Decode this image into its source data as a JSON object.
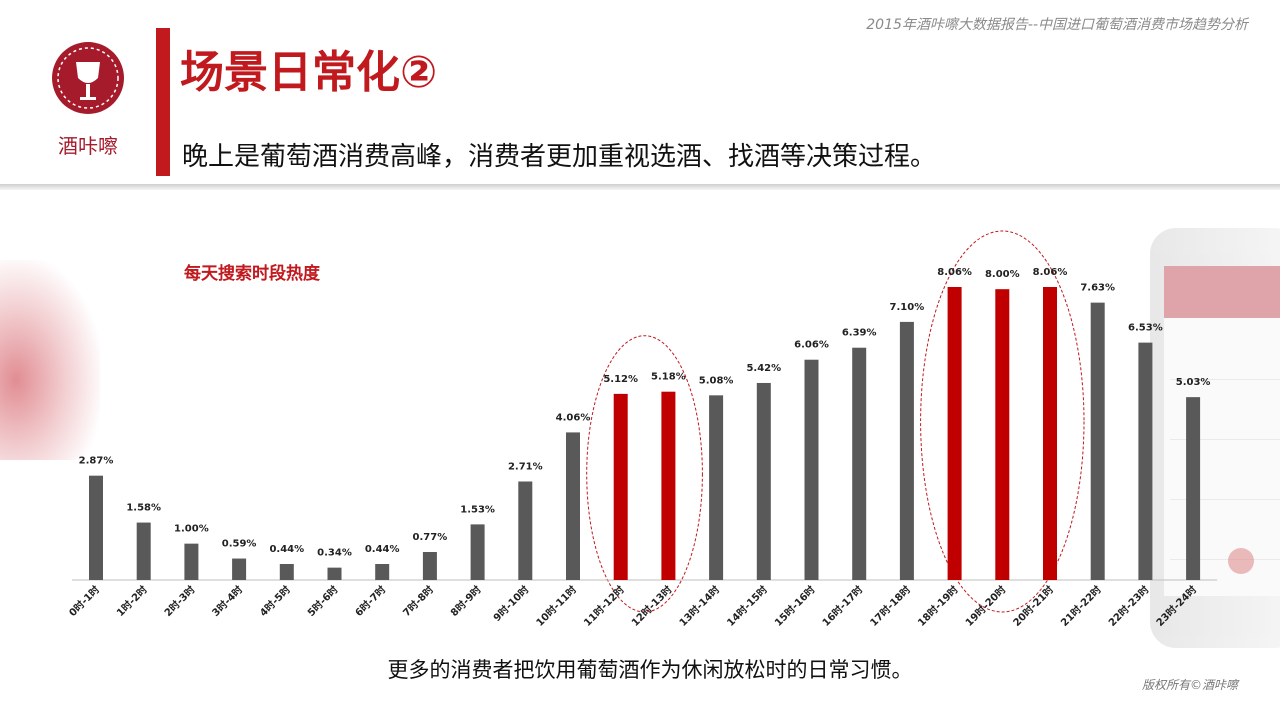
{
  "report_title": "2015年酒咔嚓大数据报告--中国进口葡萄酒消费市场趋势分析",
  "brand": {
    "name": "酒咔嚓"
  },
  "page_title": "场景日常化②",
  "subtitle": "晚上是葡萄酒消费高峰，消费者更加重视选酒、找酒等决策过程。",
  "caption": "更多的消费者把饮用葡萄酒作为休闲放松时的日常习惯。",
  "copyright": "版权所有©酒咔嚓",
  "colors": {
    "accent": "#c0191e",
    "bar_default": "#595959",
    "bar_highlight": "#c00000"
  },
  "chart_data": {
    "type": "bar",
    "title": "每天搜索时段热度",
    "categories": [
      "0时-1时",
      "1时-2时",
      "2时-3时",
      "3时-4时",
      "4时-5时",
      "5时-6时",
      "6时-7时",
      "7时-8时",
      "8时-9时",
      "9时-10时",
      "10时-11时",
      "11时-12时",
      "12时-13时",
      "13时-14时",
      "14时-15时",
      "15时-16时",
      "16时-17时",
      "17时-18时",
      "18时-19时",
      "19时-20时",
      "20时-21时",
      "21时-22时",
      "22时-23时",
      "23时-24时"
    ],
    "values": [
      2.87,
      1.58,
      1.0,
      0.59,
      0.44,
      0.34,
      0.44,
      0.77,
      1.53,
      2.71,
      4.06,
      5.12,
      5.18,
      5.08,
      5.42,
      6.06,
      6.39,
      7.1,
      8.06,
      8.0,
      8.06,
      7.63,
      6.53,
      5.03
    ],
    "value_labels": [
      "2.87%",
      "1.58%",
      "1.00%",
      "0.59%",
      "0.44%",
      "0.34%",
      "0.44%",
      "0.77%",
      "1.53%",
      "2.71%",
      "4.06%",
      "5.12%",
      "5.18%",
      "5.08%",
      "5.42%",
      "6.06%",
      "6.39%",
      "7.10%",
      "8.06%",
      "8.00%",
      "8.06%",
      "7.63%",
      "6.53%",
      "5.03%"
    ],
    "highlighted": [
      11,
      12,
      18,
      19,
      20
    ],
    "highlight_groups": [
      [
        11,
        12
      ],
      [
        18,
        19,
        20
      ]
    ],
    "unit": "%",
    "ylim": [
      0,
      8.06
    ],
    "grid": false,
    "legend": "none"
  }
}
